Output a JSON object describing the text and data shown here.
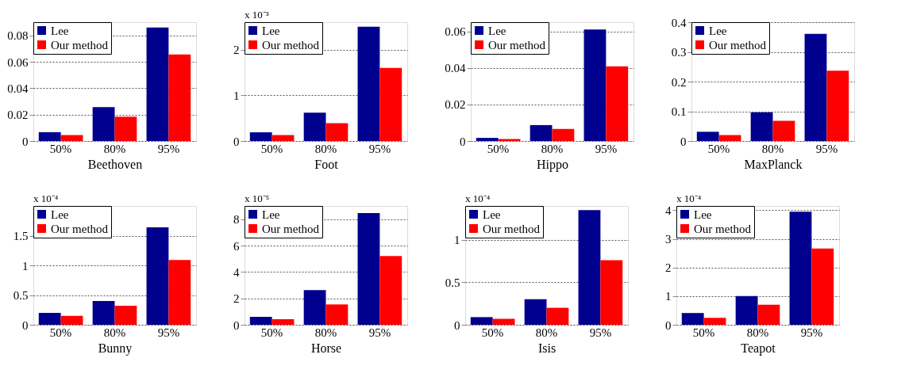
{
  "chart_data": [
    {
      "type": "bar",
      "xlabel": "Beethoven",
      "categories": [
        "50%",
        "80%",
        "95%"
      ],
      "ylim": [
        0,
        0.09
      ],
      "yticks": [
        0,
        0.02,
        0.04,
        0.06,
        0.08
      ],
      "grid": "y",
      "legend": "top left",
      "series": [
        {
          "name": "Lee",
          "color": "#00008f",
          "values": [
            0.0067,
            0.0256,
            0.086
          ]
        },
        {
          "name": "Our method",
          "color": "#ff0000",
          "values": [
            0.0045,
            0.0184,
            0.0656
          ]
        }
      ]
    },
    {
      "type": "bar",
      "xlabel": "Foot",
      "categories": [
        "50%",
        "80%",
        "95%"
      ],
      "ylim": [
        0,
        2.6
      ],
      "yticks": [
        0,
        1,
        2
      ],
      "grid": "y",
      "legend": "top left",
      "annotations": [
        "x 10⁻³"
      ],
      "series": [
        {
          "name": "Lee",
          "color": "#00008f",
          "values": [
            0.19,
            0.62,
            2.5
          ]
        },
        {
          "name": "Our method",
          "color": "#ff0000",
          "values": [
            0.13,
            0.39,
            1.6
          ]
        }
      ]
    },
    {
      "type": "bar",
      "xlabel": "Hippo",
      "categories": [
        "50%",
        "80%",
        "95%"
      ],
      "ylim": [
        0,
        0.065
      ],
      "yticks": [
        0,
        0.02,
        0.04,
        0.06
      ],
      "grid": "y",
      "legend": "top left",
      "series": [
        {
          "name": "Lee",
          "color": "#00008f",
          "values": [
            0.0017,
            0.0087,
            0.061
          ]
        },
        {
          "name": "Our method",
          "color": "#ff0000",
          "values": [
            0.0011,
            0.0066,
            0.0408
          ]
        }
      ]
    },
    {
      "type": "bar",
      "xlabel": "MaxPlanck",
      "categories": [
        "50%",
        "80%",
        "95%"
      ],
      "ylim": [
        0,
        0.4
      ],
      "yticks": [
        0,
        0.1,
        0.2,
        0.3,
        0.4
      ],
      "grid": "y",
      "legend": "top left",
      "series": [
        {
          "name": "Lee",
          "color": "#00008f",
          "values": [
            0.031,
            0.097,
            0.361
          ]
        },
        {
          "name": "Our method",
          "color": "#ff0000",
          "values": [
            0.02,
            0.068,
            0.237
          ]
        }
      ]
    },
    {
      "type": "bar",
      "xlabel": "Bunny",
      "categories": [
        "50%",
        "80%",
        "95%"
      ],
      "ylim": [
        0,
        2.0
      ],
      "yticks": [
        0,
        0.5,
        1,
        1.5
      ],
      "grid": "y",
      "legend": "top left",
      "annotations": [
        "x 10⁻⁴"
      ],
      "series": [
        {
          "name": "Lee",
          "color": "#00008f",
          "values": [
            0.2,
            0.4,
            1.64
          ]
        },
        {
          "name": "Our method",
          "color": "#ff0000",
          "values": [
            0.15,
            0.32,
            1.09
          ]
        }
      ]
    },
    {
      "type": "bar",
      "xlabel": "Horse",
      "categories": [
        "50%",
        "80%",
        "95%"
      ],
      "ylim": [
        0,
        9
      ],
      "yticks": [
        0,
        2,
        4,
        6,
        8
      ],
      "grid": "y",
      "legend": "top left",
      "annotations": [
        "x 10⁻⁵"
      ],
      "series": [
        {
          "name": "Lee",
          "color": "#00008f",
          "values": [
            0.6,
            2.62,
            8.46
          ]
        },
        {
          "name": "Our method",
          "color": "#ff0000",
          "values": [
            0.42,
            1.54,
            5.2
          ]
        }
      ]
    },
    {
      "type": "bar",
      "xlabel": "Isis",
      "categories": [
        "50%",
        "80%",
        "95%"
      ],
      "ylim": [
        0,
        1.4
      ],
      "yticks": [
        0,
        0.5,
        1
      ],
      "grid": "y",
      "legend": "top left",
      "annotations": [
        "x 10⁻⁴"
      ],
      "series": [
        {
          "name": "Lee",
          "color": "#00008f",
          "values": [
            0.09,
            0.3,
            1.35
          ]
        },
        {
          "name": "Our method",
          "color": "#ff0000",
          "values": [
            0.07,
            0.2,
            0.76
          ]
        }
      ]
    },
    {
      "type": "bar",
      "xlabel": "Teapot",
      "categories": [
        "50%",
        "80%",
        "95%"
      ],
      "ylim": [
        0,
        4.15
      ],
      "yticks": [
        0,
        1,
        2,
        3,
        4
      ],
      "grid": "y",
      "legend": "top left",
      "annotations": [
        "x 10⁻⁴"
      ],
      "series": [
        {
          "name": "Lee",
          "color": "#00008f",
          "values": [
            0.41,
            1.0,
            3.95
          ]
        },
        {
          "name": "Our method",
          "color": "#ff0000",
          "values": [
            0.24,
            0.7,
            2.66
          ]
        }
      ]
    }
  ]
}
